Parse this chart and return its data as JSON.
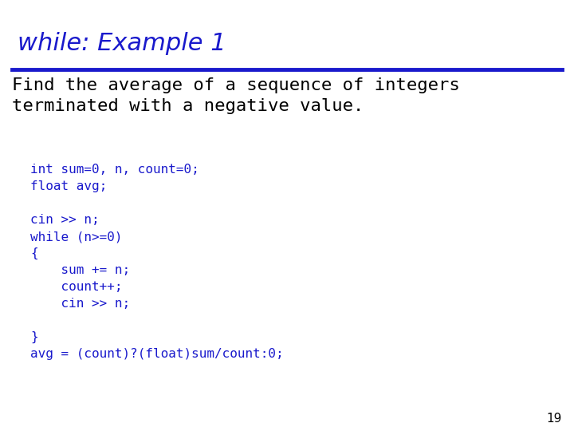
{
  "title": "while: Example 1",
  "title_color": "#1a1acc",
  "title_fontsize": 22,
  "line_color": "#1a1acc",
  "body_text": "Find the average of a sequence of integers\nterminated with a negative value.",
  "body_color": "#000000",
  "body_fontsize": 16,
  "code_lines": [
    "int sum=0, n, count=0;",
    "float avg;",
    "",
    "cin >> n;",
    "while (n>=0)",
    "{",
    "    sum += n;",
    "    count++;",
    "    cin >> n;",
    "",
    "}",
    "avg = (count)?(float)sum/count:0;"
  ],
  "code_color": "#1a1acc",
  "code_fontsize": 11.5,
  "page_number": "19",
  "page_num_color": "#000000",
  "background_color": "#ffffff"
}
